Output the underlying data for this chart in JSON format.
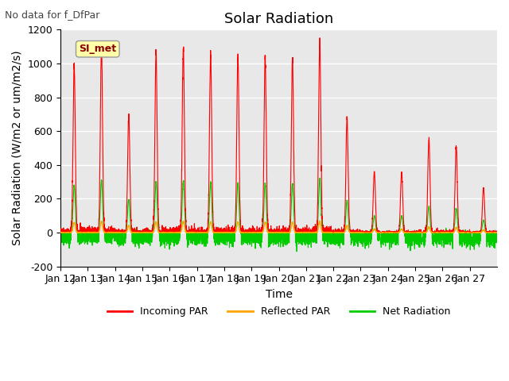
{
  "title": "Solar Radiation",
  "suptitle": "No data for f_DfPar",
  "ylabel": "Solar Radiation (W/m2 or um/m2/s)",
  "xlabel": "Time",
  "ylim": [
    -200,
    1200
  ],
  "tick_labels": [
    "Jan 12",
    "Jan 13",
    "Jan 14",
    "Jan 15",
    "Jan 16",
    "Jan 17",
    "Jan 18",
    "Jan 19",
    "Jan 20",
    "Jan 21",
    "Jan 22",
    "Jan 23",
    "Jan 24",
    "Jan 25",
    "Jan 26",
    "Jan 27"
  ],
  "background_color": "#ffffff",
  "plot_bg_color": "#e8e8e8",
  "grid_color": "#ffffff",
  "legend_label_box": "SI_met",
  "incoming_color": "#ff0000",
  "reflected_color": "#ffa500",
  "net_color": "#00cc00",
  "title_fontsize": 13,
  "axis_fontsize": 10,
  "tick_fontsize": 9,
  "day_peaks": [
    1000,
    1100,
    700,
    1060,
    1090,
    1060,
    1050,
    1040,
    1030,
    1130,
    680,
    360,
    360,
    560,
    510,
    265
  ],
  "n_days": 16,
  "legend_items": [
    "Incoming PAR",
    "Reflected PAR",
    "Net Radiation"
  ]
}
